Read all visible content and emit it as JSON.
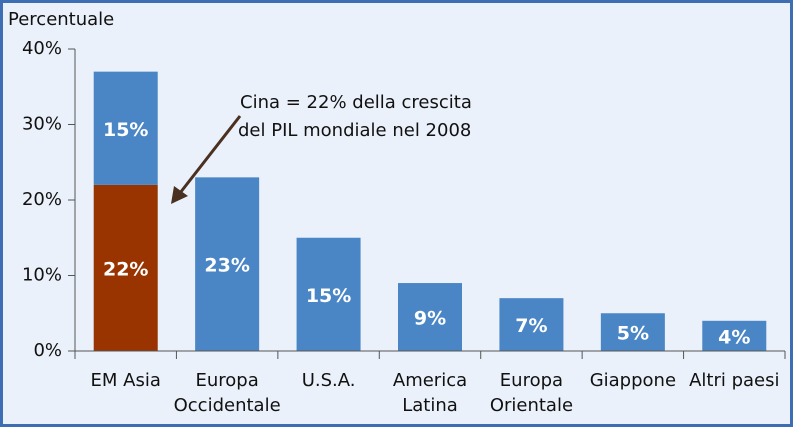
{
  "chart_data": {
    "type": "bar",
    "stacked": true,
    "y_axis_label": "Percentuale",
    "annotation": [
      "Cina = 22% della crescita",
      "del PIL mondiale nel 2008"
    ],
    "categories": [
      [
        "EM Asia"
      ],
      [
        "Europa",
        "Occidentale"
      ],
      [
        "U.S.A."
      ],
      [
        "America",
        "Latina"
      ],
      [
        "Europa",
        "Orientale"
      ],
      [
        "Giappone"
      ],
      [
        "Altri paesi"
      ]
    ],
    "series": [
      {
        "color": "#993300",
        "values": [
          22,
          null,
          null,
          null,
          null,
          null,
          null
        ],
        "value_labels": [
          "22%",
          null,
          null,
          null,
          null,
          null,
          null
        ]
      },
      {
        "color": "#4a86c5",
        "values": [
          15,
          23,
          15,
          9,
          7,
          5,
          4
        ],
        "value_labels": [
          "15%",
          "23%",
          "15%",
          "9%",
          "7%",
          "5%",
          "4%"
        ]
      }
    ],
    "ylim": [
      0,
      40
    ],
    "yticks": [
      {
        "value": 0,
        "label": "0%"
      },
      {
        "value": 10,
        "label": "10%"
      },
      {
        "value": 20,
        "label": "20%"
      },
      {
        "value": 30,
        "label": "30%"
      },
      {
        "value": 40,
        "label": "40%"
      }
    ]
  }
}
